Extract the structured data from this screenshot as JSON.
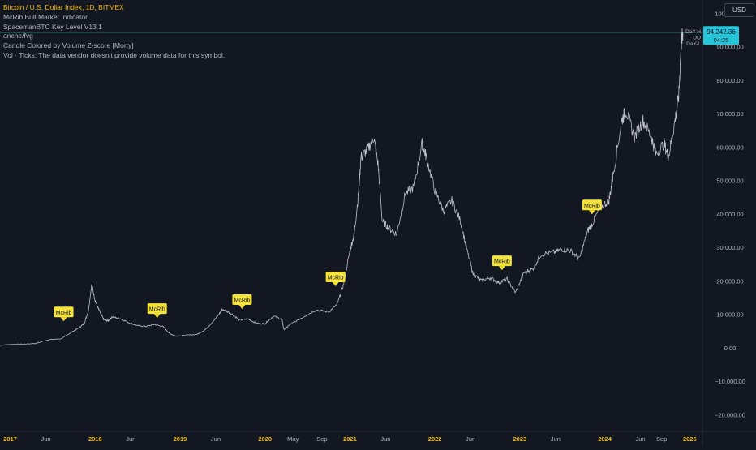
{
  "header": {
    "symbol_line": "Bitcoin / U.S. Dollar Index, 1D, BITMEX",
    "indicators": [
      "McRib Bull Market Indicator",
      "SpacemanBTC Key Level V13.1",
      "anche/fvg",
      "Candle Colored by Volume Z-score [Morty]",
      "Vol · Ticks: The data vendor doesn't provide volume data for this symbol."
    ]
  },
  "currency_button": "USD",
  "price_tag": {
    "price": "94,242.36",
    "countdown": "04:25"
  },
  "key_labels": [
    "DaY-H",
    "DO",
    "DaY-L"
  ],
  "colors": {
    "background": "#131722",
    "price_line": "#d1d4dc",
    "marker": "#f5e33b",
    "price_tag": "#26c6da",
    "axis_text": "#b2b5be",
    "year_text": "#f0b90b"
  },
  "chart_data": {
    "type": "line",
    "title": "Bitcoin / U.S. Dollar Index, 1D, BITMEX",
    "y_axis_labels": [
      "100,000.00",
      "90,000.00",
      "80,000.00",
      "70,000.00",
      "60,000.00",
      "50,000.00",
      "40,000.00",
      "30,000.00",
      "20,000.00",
      "10,000.00",
      "0.00",
      "−10,000.00",
      "−20,000.00"
    ],
    "ylim": [
      -25000,
      104000
    ],
    "x_axis_labels": [
      {
        "label": "2017",
        "x": 2017.0,
        "year": true
      },
      {
        "label": "Jun",
        "x": 2017.42,
        "year": false
      },
      {
        "label": "2018",
        "x": 2018.0,
        "year": true
      },
      {
        "label": "Jun",
        "x": 2018.42,
        "year": false
      },
      {
        "label": "2019",
        "x": 2019.0,
        "year": true
      },
      {
        "label": "Jun",
        "x": 2019.42,
        "year": false
      },
      {
        "label": "2020",
        "x": 2020.0,
        "year": true
      },
      {
        "label": "May",
        "x": 2020.33,
        "year": false
      },
      {
        "label": "Sep",
        "x": 2020.67,
        "year": false
      },
      {
        "label": "2021",
        "x": 2021.0,
        "year": true
      },
      {
        "label": "Jun",
        "x": 2021.42,
        "year": false
      },
      {
        "label": "2022",
        "x": 2022.0,
        "year": true
      },
      {
        "label": "Jun",
        "x": 2022.42,
        "year": false
      },
      {
        "label": "2023",
        "x": 2023.0,
        "year": true
      },
      {
        "label": "Jun",
        "x": 2023.42,
        "year": false
      },
      {
        "label": "2024",
        "x": 2024.0,
        "year": true
      },
      {
        "label": "Jun",
        "x": 2024.42,
        "year": false
      },
      {
        "label": "Sep",
        "x": 2024.67,
        "year": false
      },
      {
        "label": "2025",
        "x": 2025.0,
        "year": true
      }
    ],
    "xlim": [
      2016.88,
      2025.15
    ],
    "series": [
      {
        "x": [
          2016.88,
          2017.0,
          2017.15,
          2017.3,
          2017.45,
          2017.6,
          2017.7,
          2017.8,
          2017.87,
          2017.92,
          2017.96,
          2018.0,
          2018.05,
          2018.1,
          2018.15,
          2018.2,
          2018.3,
          2018.4,
          2018.5,
          2018.6,
          2018.7,
          2018.8,
          2018.88,
          2018.95,
          2019.05,
          2019.2,
          2019.3,
          2019.42,
          2019.5,
          2019.6,
          2019.7,
          2019.8,
          2019.9,
          2020.0,
          2020.1,
          2020.2,
          2020.22,
          2020.3,
          2020.45,
          2020.6,
          2020.75,
          2020.85,
          2020.92,
          2021.0,
          2021.05,
          2021.1,
          2021.13,
          2021.2,
          2021.28,
          2021.33,
          2021.38,
          2021.45,
          2021.55,
          2021.65,
          2021.75,
          2021.85,
          2021.9,
          2022.0,
          2022.1,
          2022.2,
          2022.3,
          2022.38,
          2022.45,
          2022.55,
          2022.65,
          2022.75,
          2022.85,
          2022.95,
          2023.05,
          2023.15,
          2023.25,
          2023.4,
          2023.5,
          2023.6,
          2023.7,
          2023.8,
          2023.85,
          2023.95,
          2024.05,
          2024.1,
          2024.2,
          2024.25,
          2024.35,
          2024.45,
          2024.55,
          2024.6,
          2024.7,
          2024.75,
          2024.82,
          2024.87,
          2024.9,
          2024.92
        ],
        "y": [
          750,
          1000,
          1100,
          1300,
          2400,
          2700,
          4300,
          5800,
          7200,
          11000,
          19000,
          14000,
          11000,
          8500,
          8000,
          9200,
          8700,
          7500,
          6600,
          6400,
          7000,
          6300,
          4200,
          3500,
          3700,
          4000,
          5500,
          8800,
          11500,
          10300,
          8300,
          8600,
          7300,
          7200,
          9500,
          8500,
          5500,
          7000,
          9200,
          11300,
          10700,
          13000,
          18500,
          29000,
          34000,
          46000,
          57000,
          59000,
          63000,
          55000,
          38000,
          36000,
          34000,
          46000,
          48000,
          61000,
          57000,
          47000,
          41000,
          44000,
          38000,
          29000,
          22000,
          20000,
          21000,
          19500,
          20500,
          16500,
          22500,
          23500,
          28000,
          28500,
          29500,
          29000,
          26500,
          35000,
          37000,
          42000,
          44000,
          52000,
          68000,
          71000,
          63000,
          68000,
          63000,
          58000,
          61000,
          57000,
          67000,
          75000,
          91000,
          94242
        ]
      }
    ],
    "markers": [
      {
        "label": "McRib",
        "x": 2017.63,
        "y": 5000
      },
      {
        "label": "McRib",
        "x": 2018.73,
        "y": 6000
      },
      {
        "label": "McRib",
        "x": 2019.73,
        "y": 8700
      },
      {
        "label": "McRib",
        "x": 2020.83,
        "y": 15500
      },
      {
        "label": "McRib",
        "x": 2022.79,
        "y": 20300
      },
      {
        "label": "McRib",
        "x": 2023.85,
        "y": 37000
      }
    ],
    "last_price": 94242.36,
    "grid": false
  }
}
